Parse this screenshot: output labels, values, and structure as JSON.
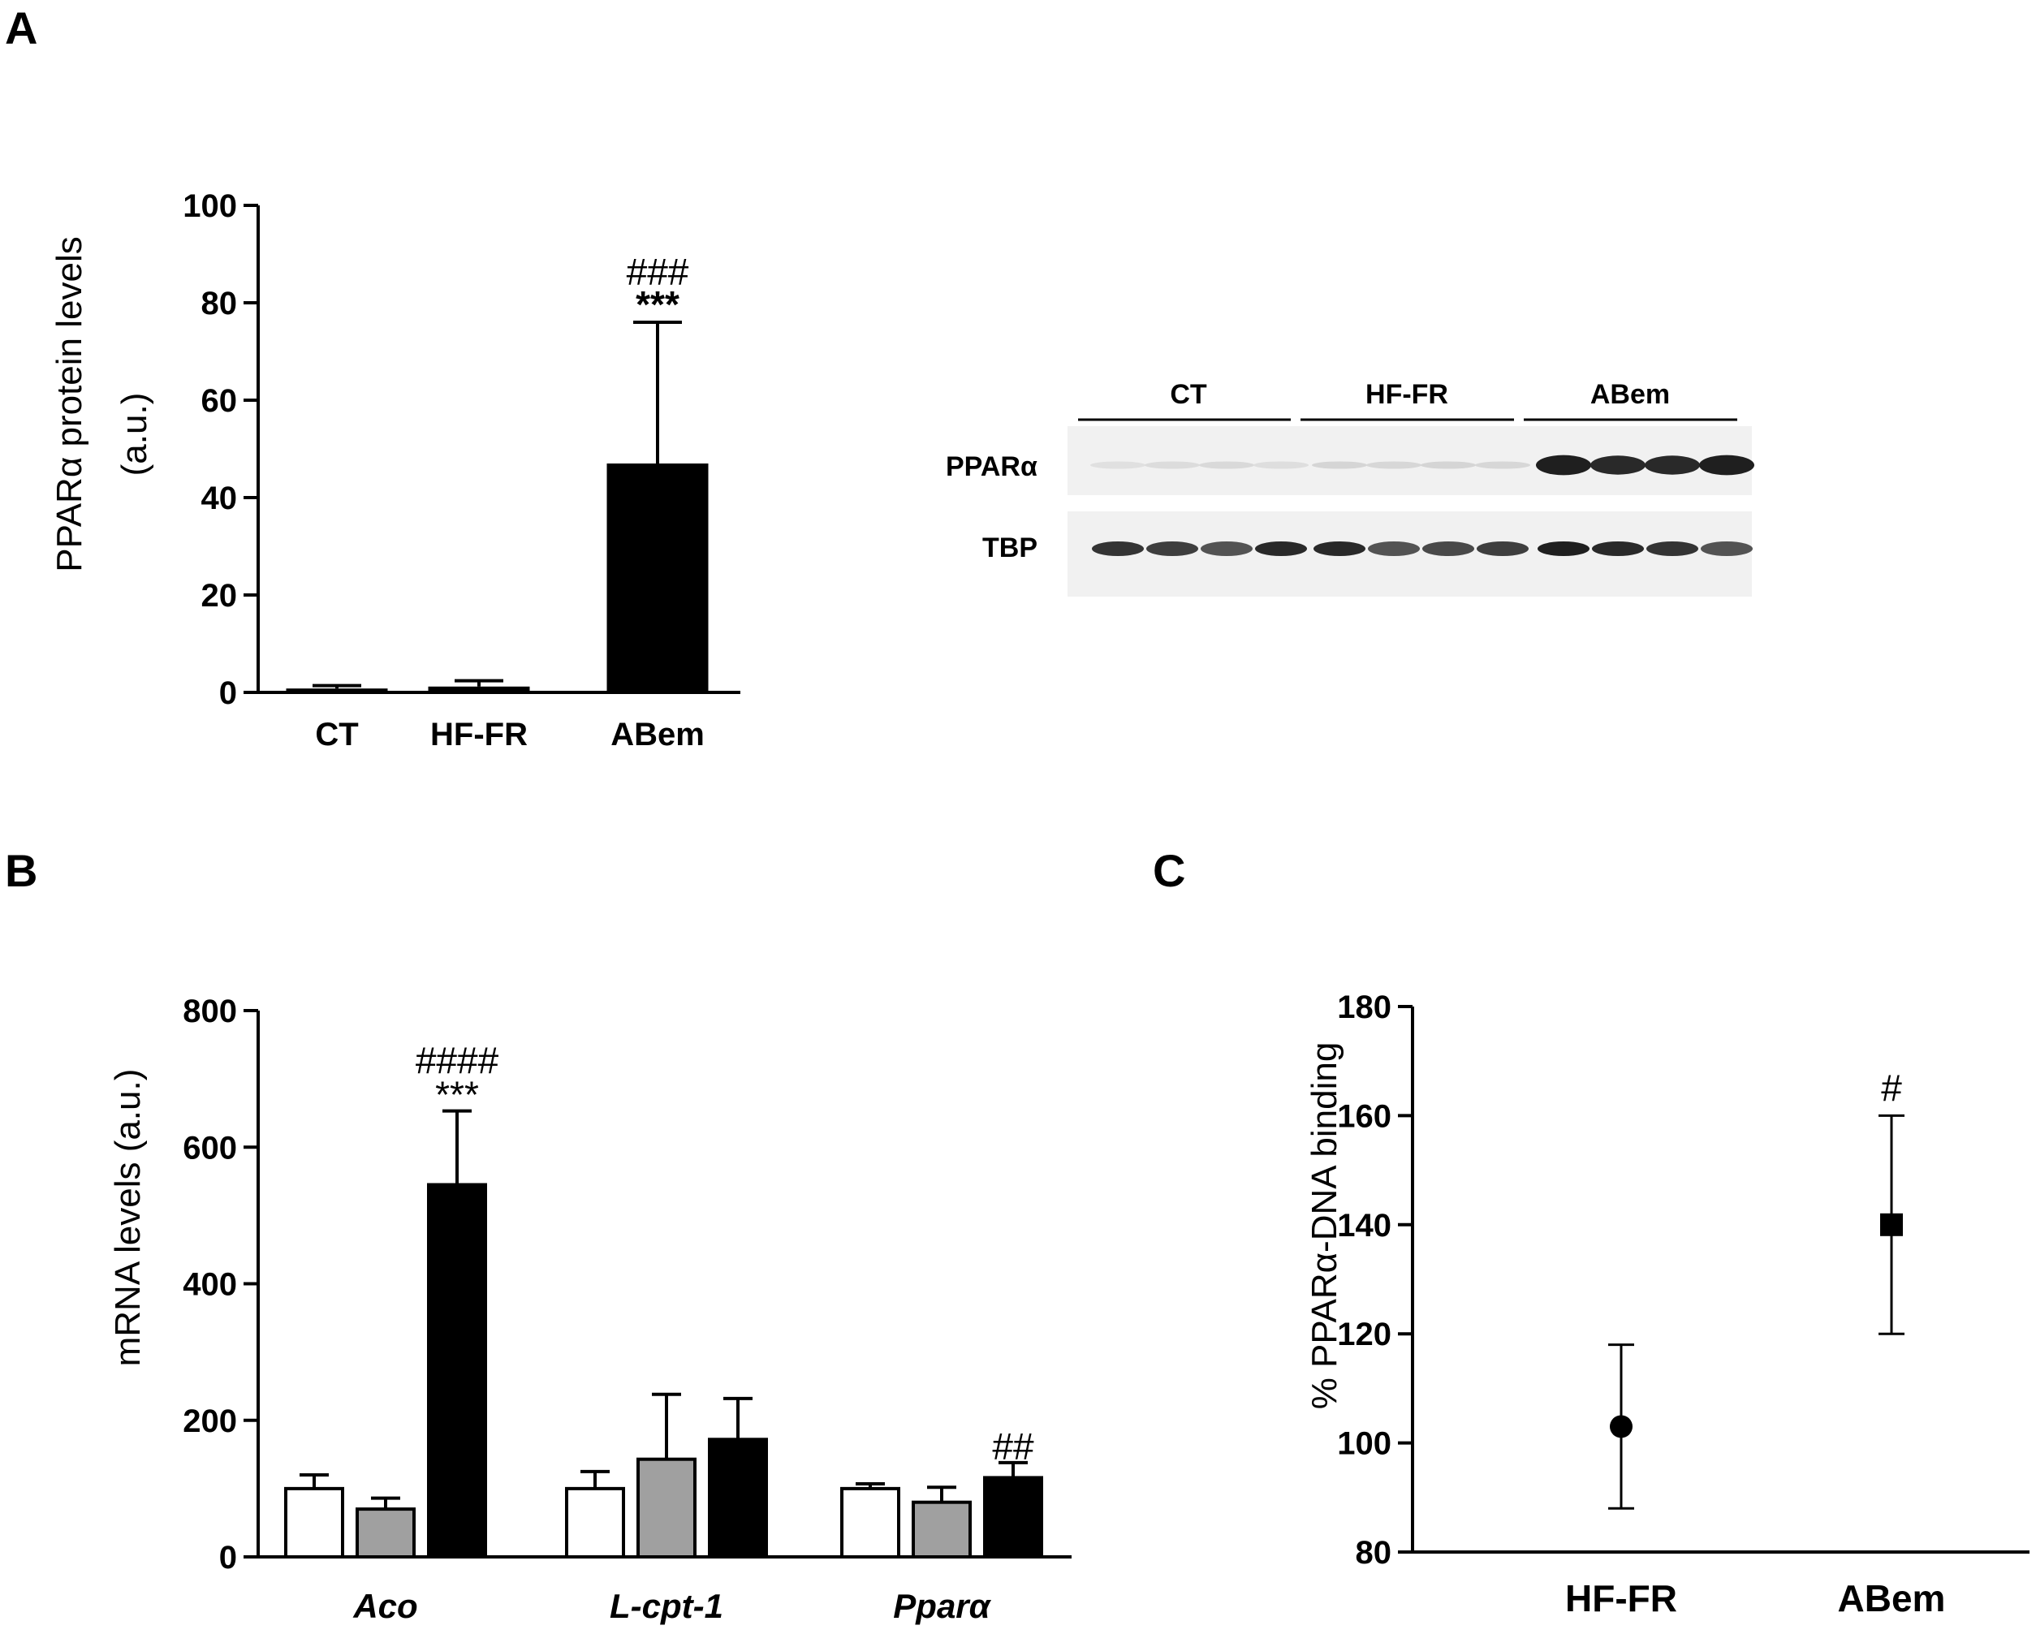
{
  "panels": {
    "a": "A",
    "b": "B",
    "c": "C"
  },
  "chart_data": [
    {
      "id": "A",
      "type": "bar",
      "ylabel": "PPARα protein levels (a.u.)",
      "ylim": [
        0,
        100
      ],
      "yticks": [
        0,
        20,
        40,
        60,
        80,
        100
      ],
      "categories": [
        "CT",
        "HF-FR",
        "ABem"
      ],
      "values": [
        0.8,
        1.2,
        47
      ],
      "errors": [
        0.6,
        1.2,
        29
      ],
      "bar_colors": [
        "#000000",
        "#000000",
        "#000000"
      ],
      "annotations": [
        {
          "category": "ABem",
          "lines": [
            "###",
            "***"
          ]
        }
      ]
    },
    {
      "id": "B",
      "type": "bar",
      "ylabel": "mRNA levels (a.u.)",
      "ylim": [
        0,
        800
      ],
      "yticks": [
        0,
        200,
        400,
        600,
        800
      ],
      "categories": [
        "Aco",
        "L-cpt-1",
        "Pparα"
      ],
      "series_colors": [
        "#ffffff",
        "#a0a0a0",
        "#000000"
      ],
      "series": [
        {
          "values": [
            100,
            100,
            100
          ],
          "errors": [
            20,
            25,
            7
          ]
        },
        {
          "values": [
            70,
            143,
            80
          ],
          "errors": [
            16,
            95,
            22
          ]
        },
        {
          "values": [
            545,
            172,
            116
          ],
          "errors": [
            108,
            60,
            22
          ]
        }
      ],
      "annotations": [
        {
          "category": "Aco",
          "series": 2,
          "lines": [
            "####",
            "***"
          ]
        },
        {
          "category": "Pparα",
          "series": 2,
          "lines": [
            "##"
          ]
        }
      ]
    },
    {
      "id": "C",
      "type": "scatter",
      "ylabel": "% PPARα-DNA binding",
      "ylim": [
        80,
        180
      ],
      "yticks": [
        80,
        100,
        120,
        140,
        160,
        180
      ],
      "categories": [
        "HF-FR",
        "ABem"
      ],
      "values": [
        103,
        140
      ],
      "errors": [
        15,
        20
      ],
      "markers": [
        "circle",
        "square"
      ],
      "annotations": [
        {
          "category": "ABem",
          "lines": [
            "#"
          ]
        }
      ]
    }
  ],
  "blot": {
    "groups": [
      "CT",
      "HF-FR",
      "ABem"
    ],
    "rows": [
      "PPARα",
      "TBP"
    ],
    "ppar_band_intensity": [
      0.03,
      0.05,
      0.06,
      0.04,
      0.08,
      0.07,
      0.08,
      0.07,
      0.95,
      0.9,
      0.9,
      0.95
    ],
    "tbp_band_intensity": [
      0.85,
      0.8,
      0.7,
      0.9,
      0.9,
      0.7,
      0.75,
      0.8,
      0.95,
      0.9,
      0.85,
      0.7
    ]
  }
}
